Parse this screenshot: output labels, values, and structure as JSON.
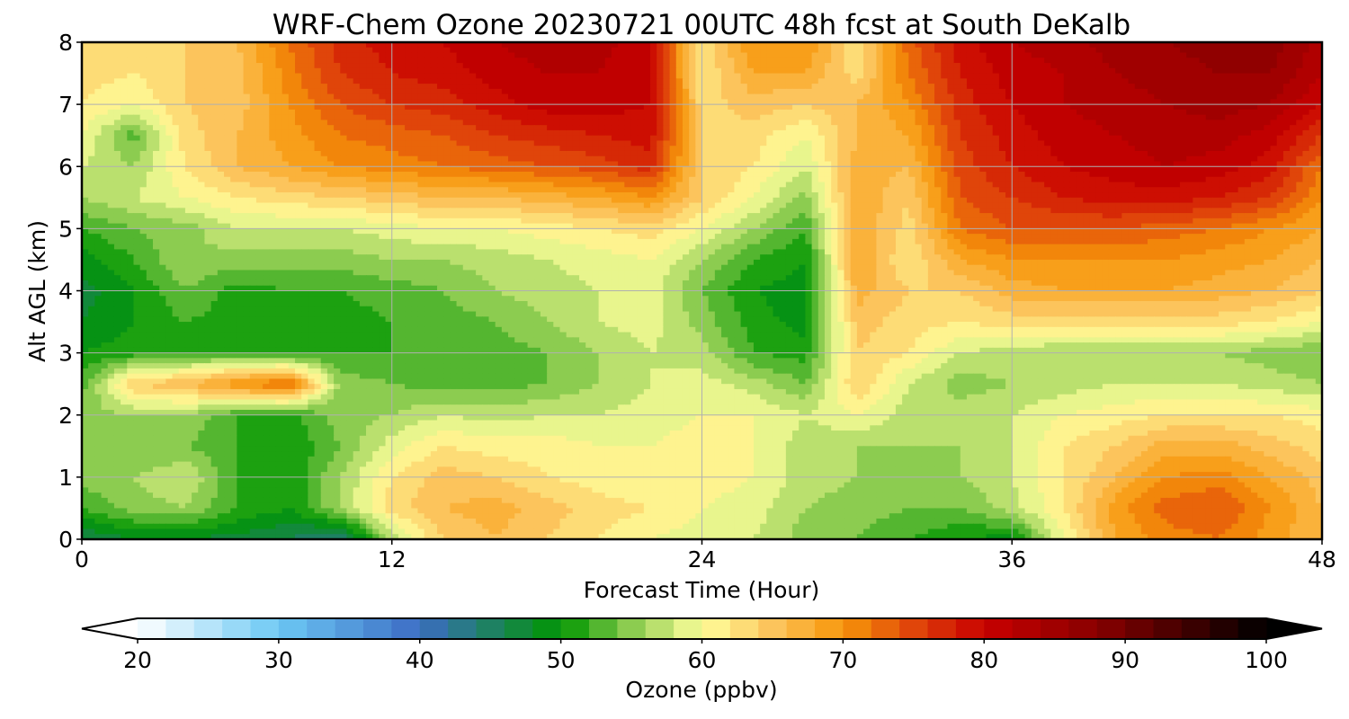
{
  "chart_data": {
    "type": "heatmap",
    "title": "WRF-Chem Ozone  20230721 00UTC 48h fcst at South DeKalb",
    "xlabel": "Forecast Time (Hour)",
    "ylabel": "Alt AGL (km)",
    "xlim": [
      0,
      48
    ],
    "ylim": [
      0,
      8
    ],
    "x_ticks": [
      0,
      12,
      24,
      36,
      48
    ],
    "y_ticks": [
      0,
      1,
      2,
      3,
      4,
      5,
      6,
      7,
      8
    ],
    "grid": true,
    "x": [
      0,
      2,
      4,
      6,
      8,
      10,
      12,
      14,
      16,
      18,
      20,
      22,
      24,
      26,
      28,
      30,
      32,
      34,
      36,
      38,
      40,
      42,
      44,
      46,
      48
    ],
    "y": [
      0,
      0.5,
      1,
      1.5,
      2,
      2.5,
      3,
      3.5,
      4,
      4.5,
      5,
      5.5,
      6,
      6.5,
      7,
      7.5,
      8
    ],
    "values": [
      [
        46,
        48,
        48,
        47,
        46,
        43,
        57,
        64,
        66,
        64,
        62,
        60,
        59,
        58,
        55,
        54,
        52,
        50,
        49,
        60,
        68,
        71,
        72,
        69,
        66
      ],
      [
        52,
        55,
        56,
        52,
        50,
        56,
        63,
        66,
        67,
        65,
        63,
        62,
        60,
        59,
        56,
        55,
        54,
        54,
        57,
        62,
        69,
        73,
        74,
        70,
        66
      ],
      [
        55,
        56,
        58,
        52,
        50,
        56,
        62,
        65,
        64,
        62,
        61,
        60,
        61,
        60,
        57,
        56,
        55,
        56,
        58,
        62,
        66,
        70,
        71,
        68,
        65
      ],
      [
        56,
        54,
        54,
        52,
        50,
        54,
        59,
        62,
        61,
        61,
        60,
        60,
        61,
        60,
        57,
        56,
        56,
        56,
        58,
        62,
        64,
        67,
        67,
        65,
        63
      ],
      [
        55,
        56,
        56,
        52,
        51,
        55,
        56,
        58,
        57,
        58,
        58,
        59,
        60,
        60,
        58,
        60,
        57,
        57,
        58,
        60,
        61,
        62,
        62,
        62,
        61
      ],
      [
        53,
        64,
        66,
        70,
        73,
        55,
        54,
        53,
        53,
        54,
        56,
        58,
        59,
        57,
        54,
        64,
        58,
        55,
        56,
        57,
        58,
        58,
        58,
        57,
        56
      ],
      [
        50,
        51,
        52,
        52,
        51,
        52,
        52,
        52,
        53,
        54,
        56,
        58,
        57,
        52,
        51,
        64,
        62,
        58,
        57,
        56,
        56,
        56,
        56,
        55,
        54
      ],
      [
        48,
        50,
        52,
        51,
        50,
        51,
        52,
        53,
        54,
        56,
        58,
        59,
        55,
        51,
        49,
        65,
        63,
        62,
        63,
        63,
        63,
        63,
        63,
        62,
        60
      ],
      [
        47,
        50,
        54,
        51,
        52,
        52,
        53,
        54,
        56,
        57,
        58,
        59,
        54,
        50,
        49,
        67,
        64,
        64,
        67,
        68,
        68,
        68,
        67,
        66,
        64
      ],
      [
        49,
        52,
        56,
        55,
        55,
        55,
        56,
        56,
        57,
        58,
        59,
        60,
        56,
        52,
        50,
        68,
        62,
        68,
        70,
        70,
        70,
        70,
        69,
        68,
        66
      ],
      [
        52,
        54,
        55,
        58,
        58,
        58,
        59,
        60,
        60,
        61,
        62,
        63,
        60,
        56,
        52,
        68,
        63,
        72,
        74,
        74,
        74,
        73,
        72,
        70,
        68
      ],
      [
        56,
        58,
        60,
        62,
        63,
        64,
        65,
        66,
        66,
        67,
        68,
        70,
        64,
        60,
        55,
        68,
        64,
        74,
        76,
        78,
        79,
        79,
        78,
        76,
        70
      ],
      [
        58,
        56,
        62,
        66,
        68,
        70,
        71,
        72,
        73,
        74,
        75,
        77,
        64,
        62,
        58,
        67,
        66,
        75,
        78,
        80,
        81,
        82,
        81,
        79,
        72
      ],
      [
        60,
        53,
        63,
        66,
        69,
        72,
        73,
        74,
        76,
        77,
        78,
        79,
        64,
        63,
        60,
        66,
        68,
        76,
        79,
        81,
        82,
        83,
        83,
        81,
        76
      ],
      [
        62,
        60,
        64,
        65,
        70,
        74,
        76,
        77,
        79,
        81,
        81,
        80,
        63,
        65,
        64,
        66,
        70,
        77,
        80,
        82,
        83,
        84,
        85,
        84,
        80
      ],
      [
        63,
        62,
        64,
        65,
        71,
        76,
        78,
        79,
        81,
        82,
        82,
        80,
        62,
        68,
        68,
        63,
        72,
        78,
        81,
        82,
        84,
        85,
        86,
        86,
        82
      ],
      [
        64,
        63,
        64,
        66,
        72,
        77,
        79,
        80,
        82,
        83,
        83,
        80,
        62,
        70,
        70,
        62,
        73,
        79,
        82,
        83,
        85,
        86,
        87,
        87,
        83
      ]
    ],
    "colorbar": {
      "label": "Ozone  (ppbv)",
      "min": 20,
      "max": 100,
      "step": 2,
      "ticks": [
        20,
        30,
        40,
        50,
        60,
        70,
        80,
        90,
        100
      ],
      "extend": "both",
      "stops": [
        [
          20,
          "#ffffff"
        ],
        [
          30,
          "#6cc8f4"
        ],
        [
          40,
          "#3c6cc4"
        ],
        [
          50,
          "#009600"
        ],
        [
          55,
          "#8ccc50"
        ],
        [
          60,
          "#ffff9c"
        ],
        [
          65,
          "#fcc45c"
        ],
        [
          70,
          "#f7960a"
        ],
        [
          75,
          "#e0450a"
        ],
        [
          80,
          "#c80000"
        ],
        [
          88,
          "#880000"
        ],
        [
          100,
          "#000000"
        ]
      ]
    }
  }
}
